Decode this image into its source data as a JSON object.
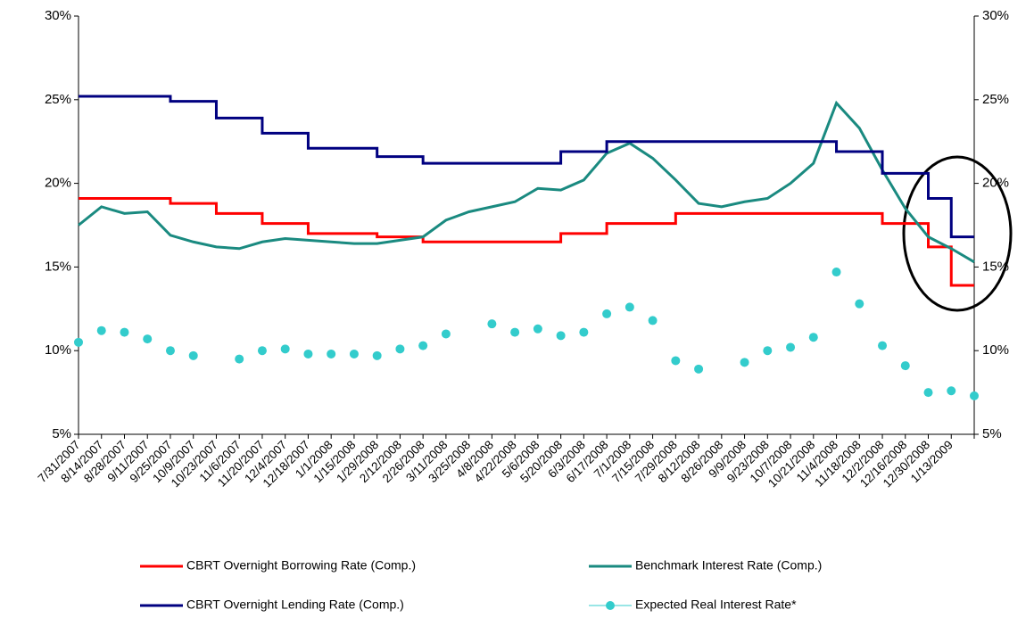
{
  "chart_data": {
    "type": "line",
    "categories": [
      "7/31/2007",
      "8/14/2007",
      "8/28/2007",
      "9/11/2007",
      "9/25/2007",
      "10/9/2007",
      "10/23/2007",
      "11/6/2007",
      "11/20/2007",
      "12/4/2007",
      "12/18/2007",
      "1/1/2008",
      "1/15/2008",
      "1/29/2008",
      "2/12/2008",
      "2/26/2008",
      "3/11/2008",
      "3/25/2008",
      "4/8/2008",
      "4/22/2008",
      "5/6/2008",
      "5/20/2008",
      "6/3/2008",
      "6/17/2008",
      "7/1/2008",
      "7/15/2008",
      "7/29/2008",
      "8/12/2008",
      "8/26/2008",
      "9/9/2008",
      "9/23/2008",
      "10/7/2008",
      "10/21/2008",
      "11/4/2008",
      "11/18/2008",
      "12/2/2008",
      "12/16/2008",
      "12/30/2008",
      "1/13/2009",
      null
    ],
    "series": [
      {
        "name": "CBRT Overnight Borrowing Rate (Comp.)",
        "color": "#ff0000",
        "style": "step",
        "values": [
          19.1,
          19.1,
          19.1,
          19.1,
          18.8,
          18.8,
          18.2,
          18.2,
          17.6,
          17.6,
          17.0,
          17.0,
          17.0,
          16.8,
          16.8,
          16.5,
          16.5,
          16.5,
          16.5,
          16.5,
          16.5,
          17.0,
          17.0,
          17.6,
          17.6,
          17.6,
          18.2,
          18.2,
          18.2,
          18.2,
          18.2,
          18.2,
          18.2,
          18.2,
          18.2,
          17.6,
          17.6,
          16.2,
          13.9,
          13.9
        ]
      },
      {
        "name": "Benchmark Interest Rate (Comp.)",
        "color": "#1a8a80",
        "style": "line",
        "values": [
          17.5,
          18.6,
          18.2,
          18.3,
          16.9,
          16.5,
          16.2,
          16.1,
          16.5,
          16.7,
          16.6,
          16.5,
          16.4,
          16.4,
          16.6,
          16.8,
          17.8,
          18.3,
          18.6,
          18.9,
          19.7,
          19.6,
          20.2,
          21.8,
          22.4,
          21.5,
          20.2,
          18.8,
          18.6,
          18.9,
          19.1,
          20.0,
          21.2,
          24.8,
          23.3,
          20.8,
          18.5,
          16.8,
          16.1,
          15.3
        ]
      },
      {
        "name": "CBRT Overnight Lending Rate (Comp.)",
        "color": "#000080",
        "style": "step",
        "values": [
          25.2,
          25.2,
          25.2,
          25.2,
          24.9,
          24.9,
          23.9,
          23.9,
          23.0,
          23.0,
          22.1,
          22.1,
          22.1,
          21.6,
          21.6,
          21.2,
          21.2,
          21.2,
          21.2,
          21.2,
          21.2,
          21.9,
          21.9,
          22.5,
          22.5,
          22.5,
          22.5,
          22.5,
          22.5,
          22.5,
          22.5,
          22.5,
          22.5,
          21.9,
          21.9,
          20.6,
          20.6,
          19.1,
          16.8,
          16.8
        ]
      },
      {
        "name": "Expected Real Interest Rate*",
        "color": "#33cccc",
        "style": "markers",
        "values": [
          10.5,
          11.2,
          11.1,
          10.7,
          10.0,
          9.7,
          null,
          9.5,
          10.0,
          10.1,
          9.8,
          9.8,
          9.8,
          9.7,
          10.1,
          10.3,
          11.0,
          null,
          11.6,
          11.1,
          11.3,
          10.9,
          11.1,
          12.2,
          12.6,
          11.8,
          9.4,
          8.9,
          null,
          9.3,
          10.0,
          10.2,
          10.8,
          14.7,
          12.8,
          10.3,
          9.1,
          7.5,
          7.6,
          7.3
        ]
      }
    ],
    "ylim": [
      5,
      30
    ],
    "yticks": [
      {
        "value": 5,
        "label": "5%"
      },
      {
        "value": 10,
        "label": "10%"
      },
      {
        "value": 15,
        "label": "15%"
      },
      {
        "value": 20,
        "label": "20%"
      },
      {
        "value": 25,
        "label": "25%"
      },
      {
        "value": 30,
        "label": "30%"
      }
    ],
    "y2lim": [
      5,
      30
    ],
    "y2ticks": [
      {
        "value": 5,
        "label": "5%"
      },
      {
        "value": 10,
        "label": "10%"
      },
      {
        "value": 15,
        "label": "15%"
      },
      {
        "value": 20,
        "label": "20%"
      },
      {
        "value": 25,
        "label": "25%"
      },
      {
        "value": 30,
        "label": "30%"
      }
    ],
    "grid": false
  }
}
